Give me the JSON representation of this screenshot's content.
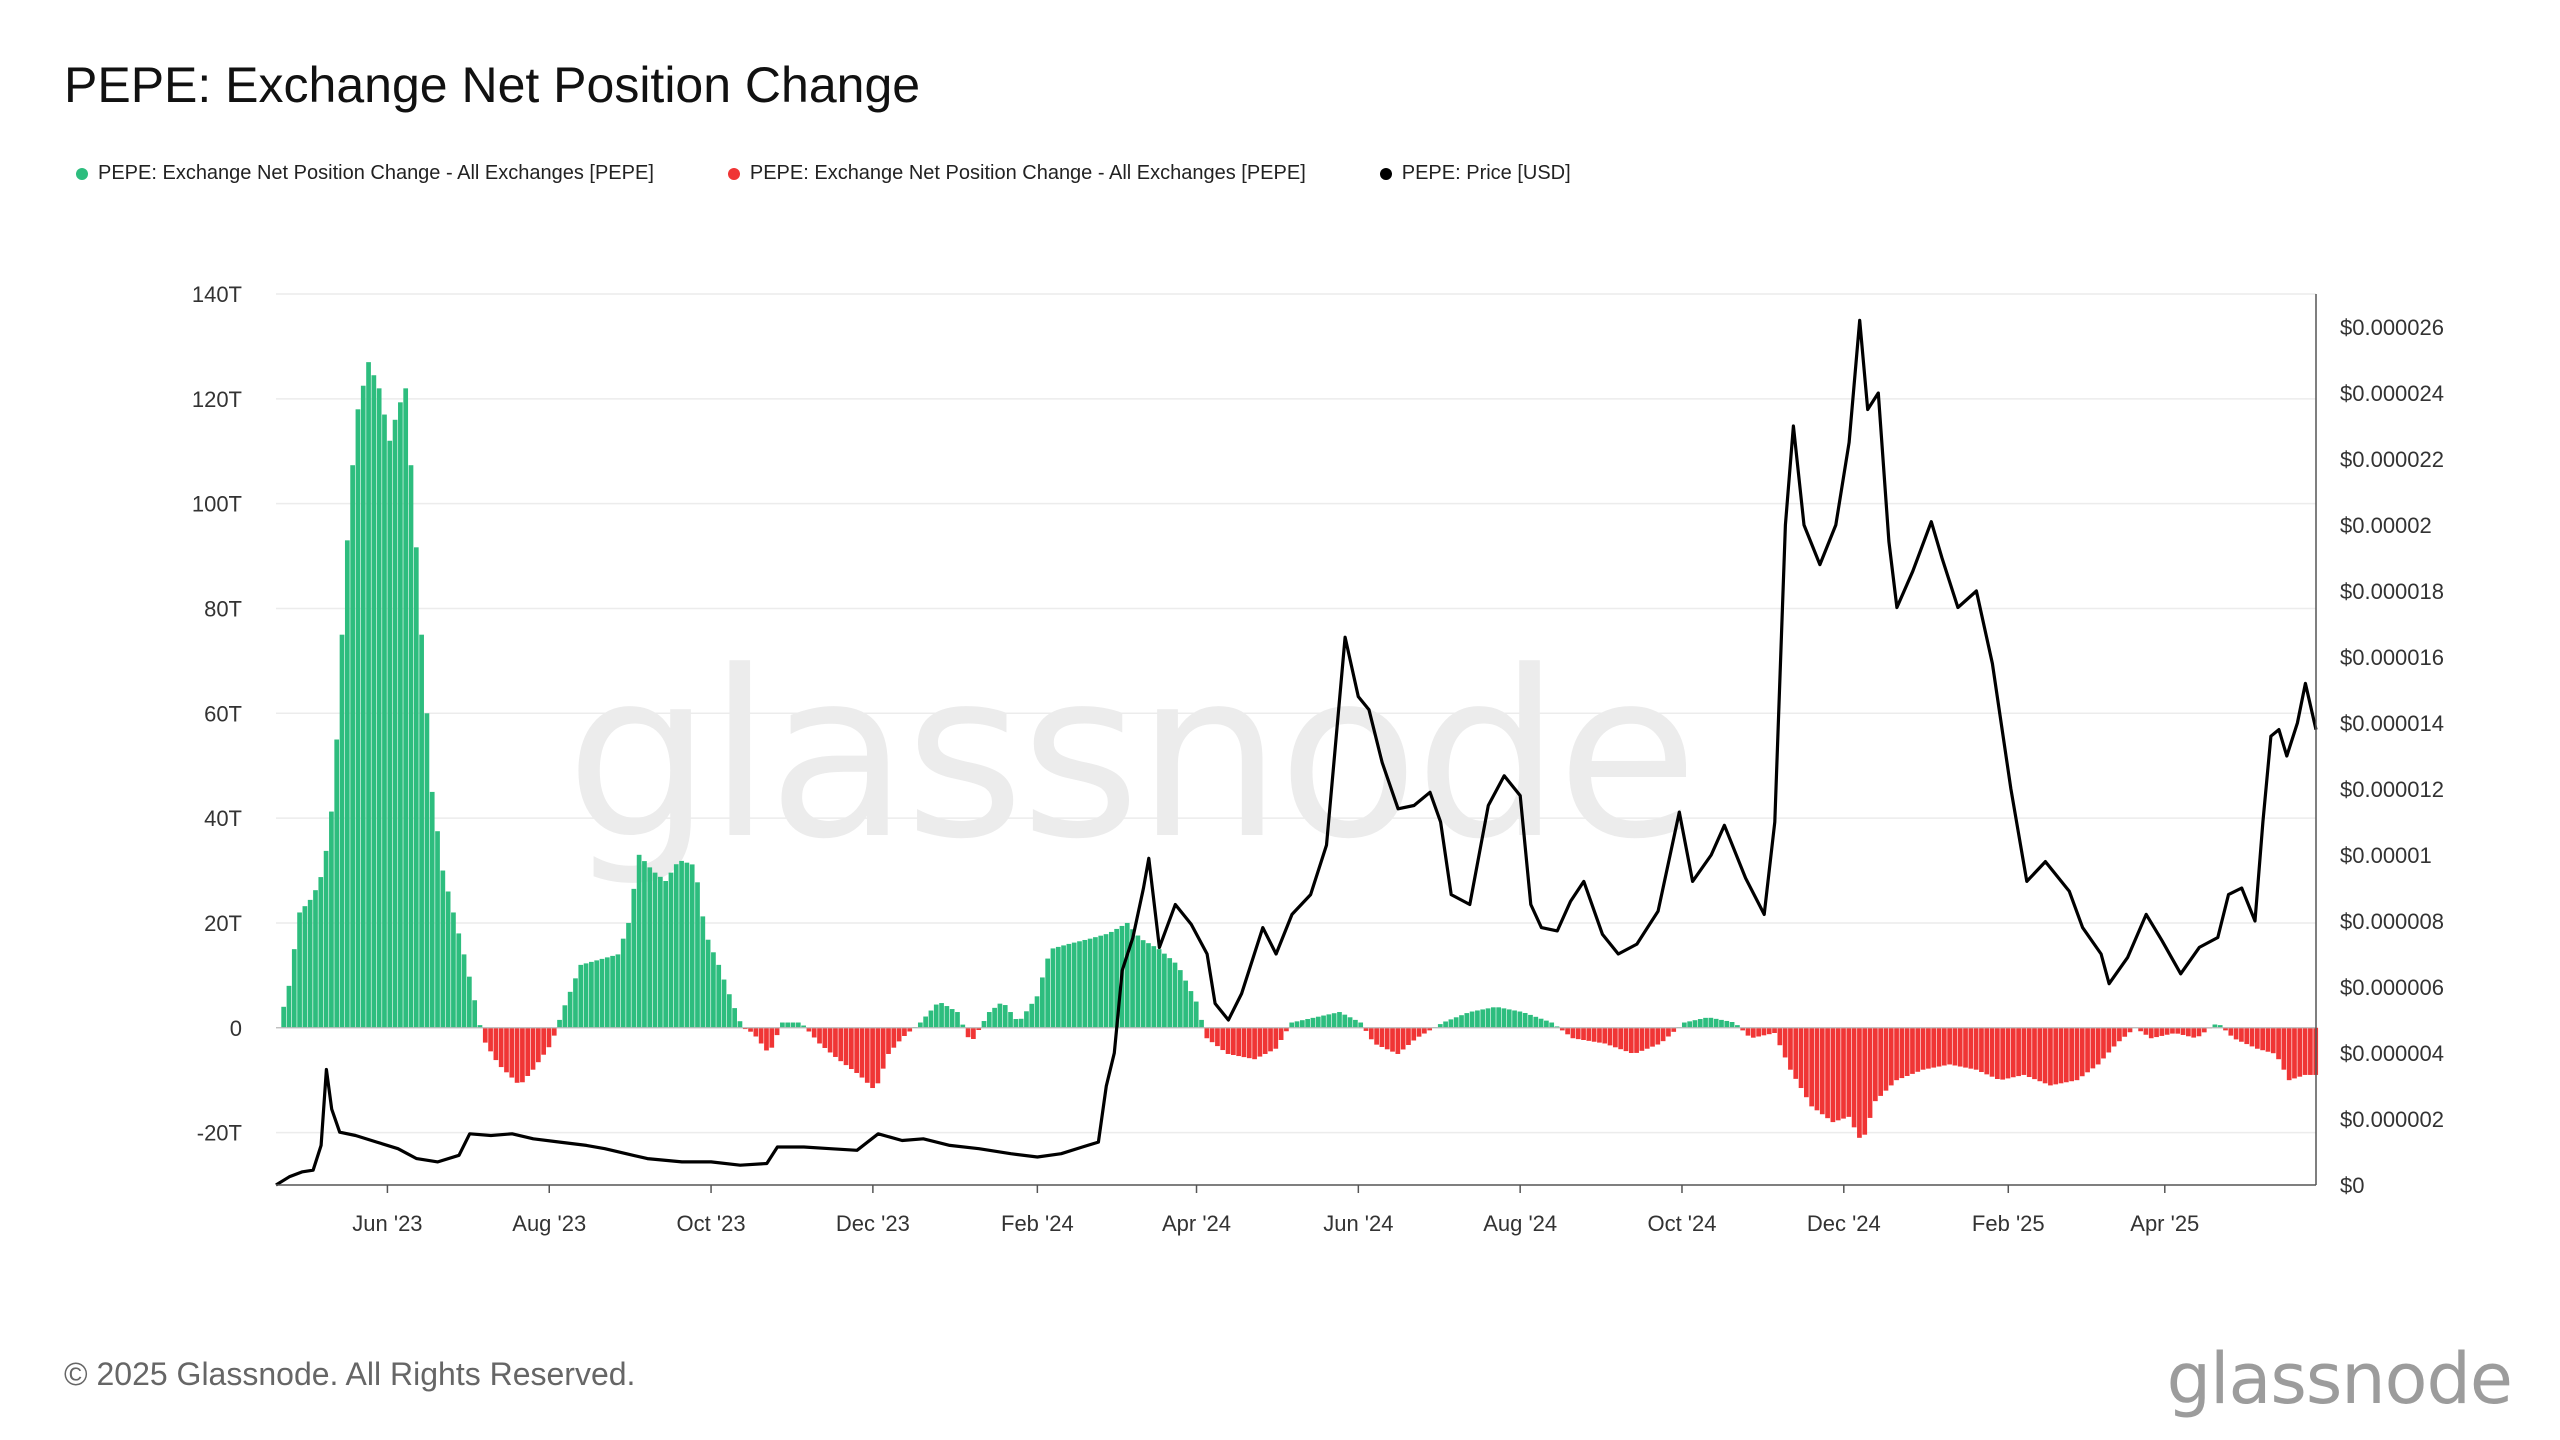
{
  "page": {
    "title": "PEPE: Exchange Net Position Change",
    "footer": "© 2025 Glassnode. All Rights Reserved.",
    "brand": "glassnode",
    "watermark": "glassnode"
  },
  "legend": [
    {
      "label": "PEPE: Exchange Net Position Change - All Exchanges [PEPE]",
      "color": "#2dbd7e"
    },
    {
      "label": "PEPE: Exchange Net Position Change - All Exchanges [PEPE]",
      "color": "#f03535"
    },
    {
      "label": "PEPE: Price [USD]",
      "color": "#000000"
    }
  ],
  "chart_data": {
    "type": "bar",
    "x_start": "2023-04-20",
    "x_end": "2025-05-28",
    "x_ticks": [
      {
        "date": "2023-06-01",
        "label": "Jun '23"
      },
      {
        "date": "2023-08-01",
        "label": "Aug '23"
      },
      {
        "date": "2023-10-01",
        "label": "Oct '23"
      },
      {
        "date": "2023-12-01",
        "label": "Dec '23"
      },
      {
        "date": "2024-02-01",
        "label": "Feb '24"
      },
      {
        "date": "2024-04-01",
        "label": "Apr '24"
      },
      {
        "date": "2024-06-01",
        "label": "Jun '24"
      },
      {
        "date": "2024-08-01",
        "label": "Aug '24"
      },
      {
        "date": "2024-10-01",
        "label": "Oct '24"
      },
      {
        "date": "2024-12-01",
        "label": "Dec '24"
      },
      {
        "date": "2025-02-01",
        "label": "Feb '25"
      },
      {
        "date": "2025-04-01",
        "label": "Apr '25"
      }
    ],
    "y_left": {
      "ylim": [
        -30,
        140
      ],
      "ticks": [
        {
          "value": 140,
          "label": "140T"
        },
        {
          "value": 120,
          "label": "120T"
        },
        {
          "value": 100,
          "label": "100T"
        },
        {
          "value": 80,
          "label": "80T"
        },
        {
          "value": 60,
          "label": "60T"
        },
        {
          "value": 40,
          "label": "40T"
        },
        {
          "value": 20,
          "label": "20T"
        },
        {
          "value": 0,
          "label": "0"
        },
        {
          "value": -20,
          "label": "-20T"
        }
      ]
    },
    "y_right": {
      "ylim": [
        0,
        2.7e-05
      ],
      "ticks": [
        {
          "value": 2.6e-05,
          "label": "$0.000026"
        },
        {
          "value": 2.4e-05,
          "label": "$0.000024"
        },
        {
          "value": 2.2e-05,
          "label": "$0.000022"
        },
        {
          "value": 2e-05,
          "label": "$0.00002"
        },
        {
          "value": 1.8e-05,
          "label": "$0.000018"
        },
        {
          "value": 1.6e-05,
          "label": "$0.000016"
        },
        {
          "value": 1.4e-05,
          "label": "$0.000014"
        },
        {
          "value": 1.2e-05,
          "label": "$0.000012"
        },
        {
          "value": 1e-05,
          "label": "$0.00001"
        },
        {
          "value": 8e-06,
          "label": "$0.000008"
        },
        {
          "value": 6e-06,
          "label": "$0.000006"
        },
        {
          "value": 4e-06,
          "label": "$0.000004"
        },
        {
          "value": 2e-06,
          "label": "$0.000002"
        },
        {
          "value": 0,
          "label": "$0"
        }
      ]
    },
    "net_position_series": {
      "name": "PEPE: Exchange Net Position Change - All Exchanges [PEPE]",
      "unit": "T",
      "positive_color": "#2dbd7e",
      "negative_color": "#f03535",
      "points": [
        [
          "2023-04-20",
          0
        ],
        [
          "2023-04-24",
          8
        ],
        [
          "2023-04-28",
          22
        ],
        [
          "2023-05-03",
          25
        ],
        [
          "2023-05-07",
          30
        ],
        [
          "2023-05-11",
          45
        ],
        [
          "2023-05-14",
          75
        ],
        [
          "2023-05-17",
          102
        ],
        [
          "2023-05-20",
          118
        ],
        [
          "2023-05-24",
          127
        ],
        [
          "2023-05-28",
          122
        ],
        [
          "2023-06-01",
          112
        ],
        [
          "2023-06-04",
          118
        ],
        [
          "2023-06-07",
          122
        ],
        [
          "2023-06-10",
          100
        ],
        [
          "2023-06-13",
          75
        ],
        [
          "2023-06-17",
          45
        ],
        [
          "2023-06-21",
          30
        ],
        [
          "2023-06-25",
          22
        ],
        [
          "2023-06-30",
          12
        ],
        [
          "2023-07-04",
          3
        ],
        [
          "2023-07-06",
          -2
        ],
        [
          "2023-07-12",
          -7
        ],
        [
          "2023-07-20",
          -11
        ],
        [
          "2023-07-25",
          -8
        ],
        [
          "2023-08-01",
          -3
        ],
        [
          "2023-08-05",
          3
        ],
        [
          "2023-08-12",
          12
        ],
        [
          "2023-08-19",
          13
        ],
        [
          "2023-08-26",
          14
        ],
        [
          "2023-08-30",
          20
        ],
        [
          "2023-09-03",
          33
        ],
        [
          "2023-09-08",
          30
        ],
        [
          "2023-09-13",
          28
        ],
        [
          "2023-09-18",
          32
        ],
        [
          "2023-09-24",
          31
        ],
        [
          "2023-09-28",
          18
        ],
        [
          "2023-10-03",
          12
        ],
        [
          "2023-10-08",
          5
        ],
        [
          "2023-10-12",
          0
        ],
        [
          "2023-10-16",
          -1
        ],
        [
          "2023-10-22",
          -5
        ],
        [
          "2023-10-27",
          1
        ],
        [
          "2023-11-03",
          1
        ],
        [
          "2023-11-10",
          -3
        ],
        [
          "2023-11-17",
          -6
        ],
        [
          "2023-11-25",
          -9
        ],
        [
          "2023-12-01",
          -12
        ],
        [
          "2023-12-06",
          -5
        ],
        [
          "2023-12-11",
          -2
        ],
        [
          "2023-12-18",
          1
        ],
        [
          "2023-12-25",
          5
        ],
        [
          "2024-01-01",
          3
        ],
        [
          "2024-01-06",
          -3
        ],
        [
          "2024-01-13",
          3
        ],
        [
          "2024-01-18",
          5
        ],
        [
          "2024-01-24",
          1
        ],
        [
          "2024-01-31",
          6
        ],
        [
          "2024-02-05",
          15
        ],
        [
          "2024-02-12",
          16
        ],
        [
          "2024-02-20",
          17
        ],
        [
          "2024-02-27",
          18
        ],
        [
          "2024-03-05",
          20
        ],
        [
          "2024-03-10",
          17
        ],
        [
          "2024-03-17",
          15
        ],
        [
          "2024-03-24",
          12
        ],
        [
          "2024-03-31",
          5
        ],
        [
          "2024-04-04",
          -2
        ],
        [
          "2024-04-12",
          -5
        ],
        [
          "2024-04-22",
          -6
        ],
        [
          "2024-04-30",
          -4
        ],
        [
          "2024-05-06",
          1
        ],
        [
          "2024-05-15",
          2
        ],
        [
          "2024-05-24",
          3
        ],
        [
          "2024-06-01",
          1
        ],
        [
          "2024-06-06",
          -3
        ],
        [
          "2024-06-15",
          -5
        ],
        [
          "2024-06-22",
          -2
        ],
        [
          "2024-07-02",
          1
        ],
        [
          "2024-07-12",
          3
        ],
        [
          "2024-07-22",
          4
        ],
        [
          "2024-08-01",
          3
        ],
        [
          "2024-08-12",
          1
        ],
        [
          "2024-08-20",
          -2
        ],
        [
          "2024-09-01",
          -3
        ],
        [
          "2024-09-12",
          -5
        ],
        [
          "2024-09-22",
          -3
        ],
        [
          "2024-10-01",
          1
        ],
        [
          "2024-10-10",
          2
        ],
        [
          "2024-10-20",
          1
        ],
        [
          "2024-10-26",
          -2
        ],
        [
          "2024-11-04",
          -1
        ],
        [
          "2024-11-10",
          -8
        ],
        [
          "2024-11-18",
          -15
        ],
        [
          "2024-11-26",
          -18
        ],
        [
          "2024-12-02",
          -17
        ],
        [
          "2024-12-07",
          -22
        ],
        [
          "2024-12-12",
          -14
        ],
        [
          "2024-12-20",
          -10
        ],
        [
          "2024-12-30",
          -8
        ],
        [
          "2025-01-09",
          -7
        ],
        [
          "2025-01-19",
          -8
        ],
        [
          "2025-01-28",
          -10
        ],
        [
          "2025-02-06",
          -9
        ],
        [
          "2025-02-16",
          -11
        ],
        [
          "2025-02-26",
          -10
        ],
        [
          "2025-03-06",
          -7
        ],
        [
          "2025-03-13",
          -3
        ],
        [
          "2025-03-20",
          0
        ],
        [
          "2025-03-26",
          -2
        ],
        [
          "2025-04-04",
          -1
        ],
        [
          "2025-04-12",
          -2
        ],
        [
          "2025-04-20",
          1
        ],
        [
          "2025-04-26",
          -2
        ],
        [
          "2025-05-05",
          -4
        ],
        [
          "2025-05-12",
          -5
        ],
        [
          "2025-05-17",
          -10
        ],
        [
          "2025-05-23",
          -9
        ],
        [
          "2025-05-28",
          -9
        ]
      ]
    },
    "price_series": {
      "name": "PEPE: Price [USD]",
      "color": "#000000",
      "points": [
        [
          "2023-04-20",
          0.0
        ],
        [
          "2023-04-25",
          2.5e-07
        ],
        [
          "2023-04-30",
          4e-07
        ],
        [
          "2023-05-04",
          4.5e-07
        ],
        [
          "2023-05-07",
          1.2e-06
        ],
        [
          "2023-05-09",
          3.5e-06
        ],
        [
          "2023-05-11",
          2.3e-06
        ],
        [
          "2023-05-14",
          1.6e-06
        ],
        [
          "2023-05-20",
          1.5e-06
        ],
        [
          "2023-05-28",
          1.3e-06
        ],
        [
          "2023-06-05",
          1.1e-06
        ],
        [
          "2023-06-12",
          8e-07
        ],
        [
          "2023-06-20",
          7e-07
        ],
        [
          "2023-06-28",
          9e-07
        ],
        [
          "2023-07-02",
          1.55e-06
        ],
        [
          "2023-07-10",
          1.5e-06
        ],
        [
          "2023-07-18",
          1.55e-06
        ],
        [
          "2023-07-26",
          1.4e-06
        ],
        [
          "2023-08-05",
          1.3e-06
        ],
        [
          "2023-08-15",
          1.2e-06
        ],
        [
          "2023-08-22",
          1.1e-06
        ],
        [
          "2023-08-30",
          9.5e-07
        ],
        [
          "2023-09-07",
          8e-07
        ],
        [
          "2023-09-20",
          7e-07
        ],
        [
          "2023-10-01",
          7e-07
        ],
        [
          "2023-10-12",
          6e-07
        ],
        [
          "2023-10-22",
          6.5e-07
        ],
        [
          "2023-10-26",
          1.15e-06
        ],
        [
          "2023-11-05",
          1.15e-06
        ],
        [
          "2023-11-15",
          1.1e-06
        ],
        [
          "2023-11-25",
          1.05e-06
        ],
        [
          "2023-12-03",
          1.55e-06
        ],
        [
          "2023-12-12",
          1.35e-06
        ],
        [
          "2023-12-20",
          1.4e-06
        ],
        [
          "2023-12-30",
          1.2e-06
        ],
        [
          "2024-01-10",
          1.1e-06
        ],
        [
          "2024-01-22",
          9.5e-07
        ],
        [
          "2024-02-01",
          8.5e-07
        ],
        [
          "2024-02-10",
          9.5e-07
        ],
        [
          "2024-02-18",
          1.15e-06
        ],
        [
          "2024-02-24",
          1.3e-06
        ],
        [
          "2024-02-27",
          3e-06
        ],
        [
          "2024-03-01",
          4e-06
        ],
        [
          "2024-03-04",
          6.5e-06
        ],
        [
          "2024-03-08",
          7.5e-06
        ],
        [
          "2024-03-12",
          9e-06
        ],
        [
          "2024-03-14",
          9.9e-06
        ],
        [
          "2024-03-18",
          7.2e-06
        ],
        [
          "2024-03-24",
          8.5e-06
        ],
        [
          "2024-03-30",
          7.9e-06
        ],
        [
          "2024-04-05",
          7e-06
        ],
        [
          "2024-04-08",
          5.5e-06
        ],
        [
          "2024-04-13",
          5e-06
        ],
        [
          "2024-04-18",
          5.8e-06
        ],
        [
          "2024-04-26",
          7.8e-06
        ],
        [
          "2024-05-01",
          7e-06
        ],
        [
          "2024-05-07",
          8.2e-06
        ],
        [
          "2024-05-14",
          8.8e-06
        ],
        [
          "2024-05-20",
          1.03e-05
        ],
        [
          "2024-05-23",
          1.3e-05
        ],
        [
          "2024-05-27",
          1.66e-05
        ],
        [
          "2024-06-01",
          1.48e-05
        ],
        [
          "2024-06-05",
          1.44e-05
        ],
        [
          "2024-06-10",
          1.28e-05
        ],
        [
          "2024-06-16",
          1.14e-05
        ],
        [
          "2024-06-22",
          1.15e-05
        ],
        [
          "2024-06-28",
          1.19e-05
        ],
        [
          "2024-07-02",
          1.1e-05
        ],
        [
          "2024-07-06",
          8.8e-06
        ],
        [
          "2024-07-13",
          8.5e-06
        ],
        [
          "2024-07-20",
          1.15e-05
        ],
        [
          "2024-07-26",
          1.24e-05
        ],
        [
          "2024-08-01",
          1.18e-05
        ],
        [
          "2024-08-05",
          8.5e-06
        ],
        [
          "2024-08-09",
          7.8e-06
        ],
        [
          "2024-08-15",
          7.7e-06
        ],
        [
          "2024-08-20",
          8.6e-06
        ],
        [
          "2024-08-25",
          9.2e-06
        ],
        [
          "2024-09-01",
          7.6e-06
        ],
        [
          "2024-09-07",
          7e-06
        ],
        [
          "2024-09-14",
          7.3e-06
        ],
        [
          "2024-09-22",
          8.3e-06
        ],
        [
          "2024-09-30",
          1.13e-05
        ],
        [
          "2024-10-05",
          9.2e-06
        ],
        [
          "2024-10-12",
          1e-05
        ],
        [
          "2024-10-17",
          1.09e-05
        ],
        [
          "2024-10-25",
          9.3e-06
        ],
        [
          "2024-11-01",
          8.2e-06
        ],
        [
          "2024-11-05",
          1.1e-05
        ],
        [
          "2024-11-09",
          2e-05
        ],
        [
          "2024-11-12",
          2.3e-05
        ],
        [
          "2024-11-16",
          2e-05
        ],
        [
          "2024-11-22",
          1.88e-05
        ],
        [
          "2024-11-28",
          2e-05
        ],
        [
          "2024-12-03",
          2.25e-05
        ],
        [
          "2024-12-07",
          2.62e-05
        ],
        [
          "2024-12-10",
          2.35e-05
        ],
        [
          "2024-12-14",
          2.4e-05
        ],
        [
          "2024-12-18",
          1.95e-05
        ],
        [
          "2024-12-21",
          1.75e-05
        ],
        [
          "2024-12-27",
          1.86e-05
        ],
        [
          "2025-01-03",
          2.01e-05
        ],
        [
          "2025-01-07",
          1.9e-05
        ],
        [
          "2025-01-13",
          1.75e-05
        ],
        [
          "2025-01-20",
          1.8e-05
        ],
        [
          "2025-01-26",
          1.58e-05
        ],
        [
          "2025-02-02",
          1.2e-05
        ],
        [
          "2025-02-08",
          9.2e-06
        ],
        [
          "2025-02-15",
          9.8e-06
        ],
        [
          "2025-02-24",
          8.9e-06
        ],
        [
          "2025-03-01",
          7.8e-06
        ],
        [
          "2025-03-08",
          7e-06
        ],
        [
          "2025-03-11",
          6.1e-06
        ],
        [
          "2025-03-18",
          6.9e-06
        ],
        [
          "2025-03-25",
          8.2e-06
        ],
        [
          "2025-03-31",
          7.4e-06
        ],
        [
          "2025-04-07",
          6.4e-06
        ],
        [
          "2025-04-14",
          7.2e-06
        ],
        [
          "2025-04-21",
          7.5e-06
        ],
        [
          "2025-04-25",
          8.8e-06
        ],
        [
          "2025-04-30",
          9e-06
        ],
        [
          "2025-05-05",
          8e-06
        ],
        [
          "2025-05-08",
          1.1e-05
        ],
        [
          "2025-05-11",
          1.36e-05
        ],
        [
          "2025-05-14",
          1.38e-05
        ],
        [
          "2025-05-17",
          1.3e-05
        ],
        [
          "2025-05-21",
          1.4e-05
        ],
        [
          "2025-05-24",
          1.52e-05
        ],
        [
          "2025-05-28",
          1.38e-05
        ]
      ]
    }
  }
}
